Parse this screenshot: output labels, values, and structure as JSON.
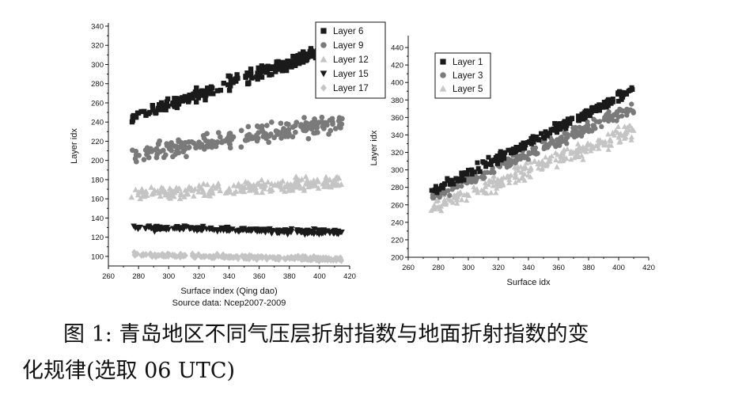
{
  "caption": {
    "line1": "图 1: 青岛地区不同气压层折射指数与地面折射指数的变",
    "line2": "化规律(选取 06 UTC)"
  },
  "chart_data": [
    {
      "type": "scatter",
      "ylabel": "Layer idx",
      "xlabel": "Surface index (Qing dao)",
      "source_note": "Source data: Ncep2007-2009",
      "xlim": [
        260,
        420
      ],
      "ylim": [
        90,
        340
      ],
      "x_ticks": [
        260,
        280,
        300,
        320,
        340,
        360,
        380,
        400,
        420
      ],
      "y_ticks": [
        100,
        120,
        140,
        160,
        180,
        200,
        220,
        240,
        260,
        280,
        300,
        320,
        340
      ],
      "legend_position": "top-right",
      "series": [
        {
          "name": "Layer 6",
          "marker": "square",
          "color": "#1a1a1a",
          "x_range": [
            275,
            415
          ],
          "line": [
            [
              275,
              245
            ],
            [
              410,
              318
            ]
          ],
          "spread": 10
        },
        {
          "name": "Layer 9",
          "marker": "circle",
          "color": "#7a7a7a",
          "x_range": [
            275,
            415
          ],
          "line": [
            [
              275,
              207
            ],
            [
              410,
              238
            ]
          ],
          "spread": 14
        },
        {
          "name": "Layer 12",
          "marker": "triangle-up",
          "color": "#c4c4c4",
          "x_range": [
            275,
            415
          ],
          "line": [
            [
              275,
              165
            ],
            [
              410,
              178
            ]
          ],
          "spread": 10
        },
        {
          "name": "Layer 15",
          "marker": "triangle-down",
          "color": "#1a1a1a",
          "x_range": [
            275,
            415
          ],
          "line": [
            [
              275,
              130
            ],
            [
              410,
              125
            ]
          ],
          "spread": 4
        },
        {
          "name": "Layer 17",
          "marker": "diamond",
          "color": "#c4c4c4",
          "x_range": [
            275,
            415
          ],
          "line": [
            [
              275,
              102
            ],
            [
              410,
              97
            ]
          ],
          "spread": 3
        }
      ]
    },
    {
      "type": "scatter",
      "ylabel": "Layer idx",
      "xlabel": "Surface idx",
      "xlim": [
        260,
        420
      ],
      "ylim": [
        200,
        450
      ],
      "x_ticks": [
        260,
        280,
        300,
        320,
        340,
        360,
        380,
        400,
        420
      ],
      "y_ticks": [
        200,
        220,
        240,
        260,
        280,
        300,
        320,
        340,
        360,
        380,
        400,
        420,
        440
      ],
      "legend_position": "top-left",
      "series": [
        {
          "name": "Layer 1",
          "marker": "square",
          "color": "#1a1a1a",
          "x_range": [
            275,
            410
          ],
          "line": [
            [
              275,
              275
            ],
            [
              410,
              392
            ]
          ],
          "spread": 8
        },
        {
          "name": "Layer 3",
          "marker": "circle",
          "color": "#7a7a7a",
          "x_range": [
            275,
            410
          ],
          "line": [
            [
              275,
              268
            ],
            [
              410,
              372
            ]
          ],
          "spread": 10
        },
        {
          "name": "Layer 5",
          "marker": "triangle-up",
          "color": "#c4c4c4",
          "x_range": [
            275,
            410
          ],
          "line": [
            [
              275,
              257
            ],
            [
              410,
              345
            ]
          ],
          "spread": 14
        }
      ]
    }
  ]
}
